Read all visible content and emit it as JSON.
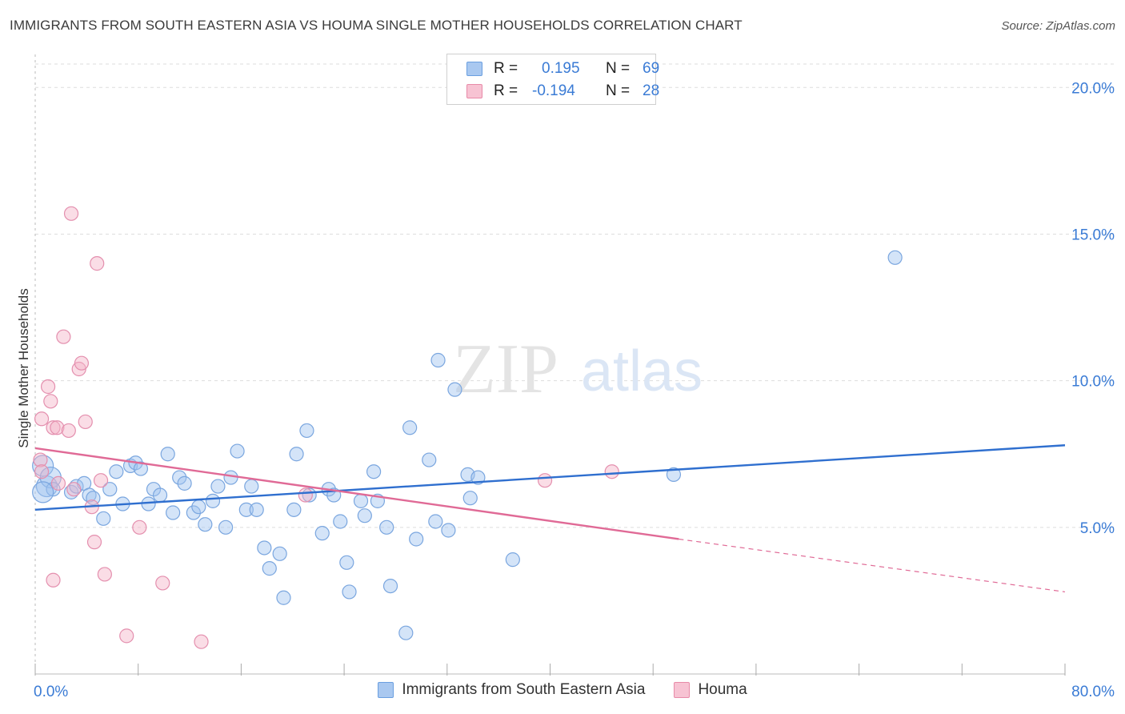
{
  "header": {
    "title": "IMMIGRANTS FROM SOUTH EASTERN ASIA VS HOUMA SINGLE MOTHER HOUSEHOLDS CORRELATION CHART",
    "source": "Source: ZipAtlas.com"
  },
  "watermark": {
    "zip": "ZIP",
    "atlas": "atlas"
  },
  "stats": {
    "rows": [
      {
        "r_label": "R =",
        "r_value": "0.195",
        "n_label": "N =",
        "n_value": "69",
        "color": "#a9c8f0",
        "border": "#6a9fe0"
      },
      {
        "r_label": "R =",
        "r_value": "-0.194",
        "n_label": "N =",
        "n_value": "28",
        "color": "#f7c3d3",
        "border": "#e88aa8"
      }
    ]
  },
  "legend": {
    "items": [
      {
        "label": "Immigrants from South Eastern Asia",
        "color": "#a9c8f0",
        "border": "#6a9fe0"
      },
      {
        "label": "Houma",
        "color": "#f7c3d3",
        "border": "#e88aa8"
      }
    ]
  },
  "colors": {
    "blue_fill": "rgba(160,195,240,0.45)",
    "blue_stroke": "#7aa6df",
    "blue_line": "#2f6fcf",
    "pink_fill": "rgba(245,180,200,0.45)",
    "pink_stroke": "#e48fae",
    "pink_line": "#e06a96",
    "tick_text": "#3a7bd5",
    "grid": "#dddddd"
  },
  "chart_data": {
    "type": "scatter",
    "title": "IMMIGRANTS FROM SOUTH EASTERN ASIA VS HOUMA SINGLE MOTHER HOUSEHOLDS CORRELATION CHART",
    "xlabel": "",
    "ylabel": "Single Mother Households",
    "xlim": [
      0,
      80
    ],
    "ylim": [
      0,
      20.8
    ],
    "x_tick_labels": [
      "0.0%",
      "80.0%"
    ],
    "y_ticks": [
      5,
      10,
      15,
      20
    ],
    "y_tick_labels": [
      "5.0%",
      "10.0%",
      "15.0%",
      "20.0%"
    ],
    "grid": true,
    "legend_position": "bottom",
    "series": [
      {
        "name": "Immigrants from South Eastern Asia",
        "points": [
          [
            0.6,
            7.1
          ],
          [
            0.9,
            6.4
          ],
          [
            1.2,
            6.7
          ],
          [
            1.4,
            6.3
          ],
          [
            2.8,
            6.2
          ],
          [
            3.2,
            6.4
          ],
          [
            3.8,
            6.5
          ],
          [
            4.2,
            6.1
          ],
          [
            4.5,
            6.0
          ],
          [
            5.3,
            5.3
          ],
          [
            5.8,
            6.3
          ],
          [
            6.3,
            6.9
          ],
          [
            6.8,
            5.8
          ],
          [
            7.4,
            7.1
          ],
          [
            7.8,
            7.2
          ],
          [
            8.2,
            7.0
          ],
          [
            8.8,
            5.8
          ],
          [
            9.2,
            6.3
          ],
          [
            9.7,
            6.1
          ],
          [
            10.3,
            7.5
          ],
          [
            10.7,
            5.5
          ],
          [
            11.2,
            6.7
          ],
          [
            11.6,
            6.5
          ],
          [
            12.3,
            5.5
          ],
          [
            12.7,
            5.7
          ],
          [
            13.2,
            5.1
          ],
          [
            13.8,
            5.9
          ],
          [
            14.2,
            6.4
          ],
          [
            14.8,
            5.0
          ],
          [
            15.2,
            6.7
          ],
          [
            15.7,
            7.6
          ],
          [
            16.4,
            5.6
          ],
          [
            16.8,
            6.4
          ],
          [
            17.2,
            5.6
          ],
          [
            17.8,
            4.3
          ],
          [
            18.2,
            3.6
          ],
          [
            19.0,
            4.1
          ],
          [
            19.3,
            2.6
          ],
          [
            20.1,
            5.6
          ],
          [
            20.3,
            7.5
          ],
          [
            21.1,
            8.3
          ],
          [
            21.3,
            6.1
          ],
          [
            22.3,
            4.8
          ],
          [
            22.8,
            6.3
          ],
          [
            23.2,
            6.1
          ],
          [
            23.7,
            5.2
          ],
          [
            24.2,
            3.8
          ],
          [
            24.4,
            2.8
          ],
          [
            25.3,
            5.9
          ],
          [
            25.6,
            5.4
          ],
          [
            26.3,
            6.9
          ],
          [
            26.6,
            5.9
          ],
          [
            27.3,
            5.0
          ],
          [
            27.6,
            3.0
          ],
          [
            28.8,
            1.4
          ],
          [
            29.1,
            8.4
          ],
          [
            29.6,
            4.6
          ],
          [
            30.6,
            7.3
          ],
          [
            31.1,
            5.2
          ],
          [
            31.3,
            10.7
          ],
          [
            32.1,
            4.9
          ],
          [
            32.6,
            9.7
          ],
          [
            33.6,
            6.8
          ],
          [
            33.8,
            6.0
          ],
          [
            34.4,
            6.7
          ],
          [
            37.1,
            3.9
          ],
          [
            49.6,
            6.8
          ],
          [
            66.8,
            14.2
          ],
          [
            0.6,
            6.2
          ]
        ],
        "trend": {
          "x": [
            0,
            80
          ],
          "y": [
            5.6,
            7.8
          ]
        }
      },
      {
        "name": "Houma",
        "points": [
          [
            0.4,
            7.3
          ],
          [
            0.5,
            8.7
          ],
          [
            0.5,
            6.9
          ],
          [
            1.0,
            9.8
          ],
          [
            1.2,
            9.3
          ],
          [
            1.4,
            8.4
          ],
          [
            1.7,
            8.4
          ],
          [
            1.8,
            6.5
          ],
          [
            2.2,
            11.5
          ],
          [
            2.6,
            8.3
          ],
          [
            2.8,
            15.7
          ],
          [
            3.0,
            6.3
          ],
          [
            3.4,
            10.4
          ],
          [
            3.6,
            10.6
          ],
          [
            3.9,
            8.6
          ],
          [
            4.4,
            5.7
          ],
          [
            4.6,
            4.5
          ],
          [
            4.8,
            14.0
          ],
          [
            5.1,
            6.6
          ],
          [
            5.4,
            3.4
          ],
          [
            1.4,
            3.2
          ],
          [
            7.1,
            1.3
          ],
          [
            8.1,
            5.0
          ],
          [
            9.9,
            3.1
          ],
          [
            12.9,
            1.1
          ],
          [
            21.0,
            6.1
          ],
          [
            39.6,
            6.6
          ],
          [
            44.8,
            6.9
          ]
        ],
        "trend": {
          "x": [
            0,
            50
          ],
          "y": [
            7.7,
            4.6
          ]
        },
        "trend_extension": {
          "x": [
            50,
            80
          ],
          "y": [
            4.6,
            2.8
          ]
        }
      }
    ]
  }
}
